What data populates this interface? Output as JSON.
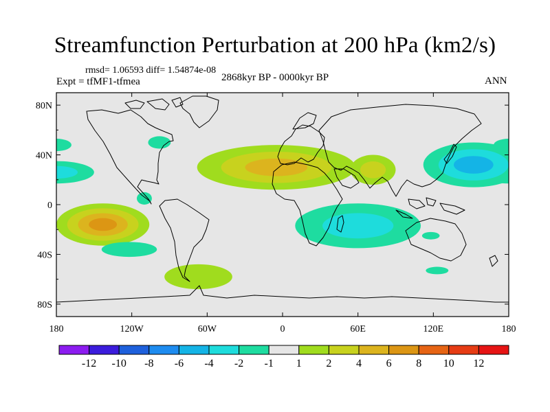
{
  "title": "Streamfunction Perturbation at 200 hPa (km2/s)",
  "stats_line": "rmsd= 1.06593 diff= 1.54874e-08",
  "experiment_label": "Expt = tfMF1-tfmea",
  "period_label": "2868kyr BP - 0000kyr BP",
  "season_label": "ANN",
  "map": {
    "lon_range": [
      -180,
      180
    ],
    "lat_range": [
      -90,
      90
    ],
    "lat_ticks": [
      {
        "label": "80N",
        "lat": 80
      },
      {
        "label": "40N",
        "lat": 40
      },
      {
        "label": "0",
        "lat": 0
      },
      {
        "label": "40S",
        "lat": -40
      },
      {
        "label": "80S",
        "lat": -80
      }
    ],
    "lon_ticks": [
      {
        "label": "180",
        "lon": -180
      },
      {
        "label": "120W",
        "lon": -120
      },
      {
        "label": "60W",
        "lon": -60
      },
      {
        "label": "0",
        "lon": 0
      },
      {
        "label": "60E",
        "lon": 60
      },
      {
        "label": "120E",
        "lon": 120
      },
      {
        "label": "180",
        "lon": 180
      }
    ],
    "background_color": "#e6e6e6",
    "anomalies": [
      {
        "name": "north-pacific-east-negative",
        "lon": -180,
        "lat": 26,
        "rlon": 30,
        "rlat": 9,
        "levels": [
          -1,
          -2
        ]
      },
      {
        "name": "north-america-negative",
        "lon": -98,
        "lat": 50,
        "rlon": 9,
        "rlat": 5,
        "levels": [
          -1
        ]
      },
      {
        "name": "east-pacific-small-negative",
        "lon": -110,
        "lat": 5,
        "rlon": 6,
        "rlat": 5,
        "levels": [
          -1
        ]
      },
      {
        "name": "south-pacific-positive",
        "lon": -143,
        "lat": -16,
        "rlon": 37,
        "rlat": 17,
        "levels": [
          1,
          2,
          4,
          6
        ]
      },
      {
        "name": "south-pacific-band-negative",
        "lon": -122,
        "lat": -36,
        "rlon": 22,
        "rlat": 6,
        "levels": [
          -1
        ]
      },
      {
        "name": "south-atlantic-positive",
        "lon": -67,
        "lat": -58,
        "rlon": 27,
        "rlat": 10,
        "levels": [
          1
        ]
      },
      {
        "name": "north-atlantic-africa-positive",
        "lon": -5,
        "lat": 30,
        "rlon": 63,
        "rlat": 18,
        "levels": [
          1,
          2,
          4
        ]
      },
      {
        "name": "arabia-positive",
        "lon": 72,
        "lat": 28,
        "rlon": 18,
        "rlat": 12,
        "levels": [
          1,
          2
        ]
      },
      {
        "name": "south-indian-negative",
        "lon": 60,
        "lat": -17,
        "rlon": 50,
        "rlat": 18,
        "levels": [
          -1,
          -2
        ]
      },
      {
        "name": "australia-west-negative",
        "lon": 118,
        "lat": -25,
        "rlon": 7,
        "rlat": 3,
        "levels": [
          -1
        ]
      },
      {
        "name": "southern-ocean-negative",
        "lon": 123,
        "lat": -53,
        "rlon": 9,
        "rlat": 3,
        "levels": [
          -1
        ]
      },
      {
        "name": "north-west-pacific-negative",
        "lon": 152,
        "lat": 32,
        "rlon": 40,
        "rlat": 18,
        "levels": [
          -1,
          -2,
          -4
        ]
      },
      {
        "name": "north-east-atlantic-negative",
        "lon": 180,
        "lat": 48,
        "rlon": 12,
        "rlat": 5,
        "levels": [
          -1
        ]
      }
    ]
  },
  "colorbar": {
    "colors": [
      "#8c1cf0",
      "#3b1cdc",
      "#1e60dc",
      "#1e8cf0",
      "#14b4e6",
      "#1edcdc",
      "#1edca0",
      "#e6e6e6",
      "#a0dc1e",
      "#c8d21e",
      "#dcb41e",
      "#dc9614",
      "#e66414",
      "#e63c14",
      "#e61414"
    ],
    "levels": [
      "-12",
      "-10",
      "-8",
      "-6",
      "-4",
      "-2",
      "-1",
      "1",
      "2",
      "4",
      "6",
      "8",
      "10",
      "12"
    ]
  }
}
